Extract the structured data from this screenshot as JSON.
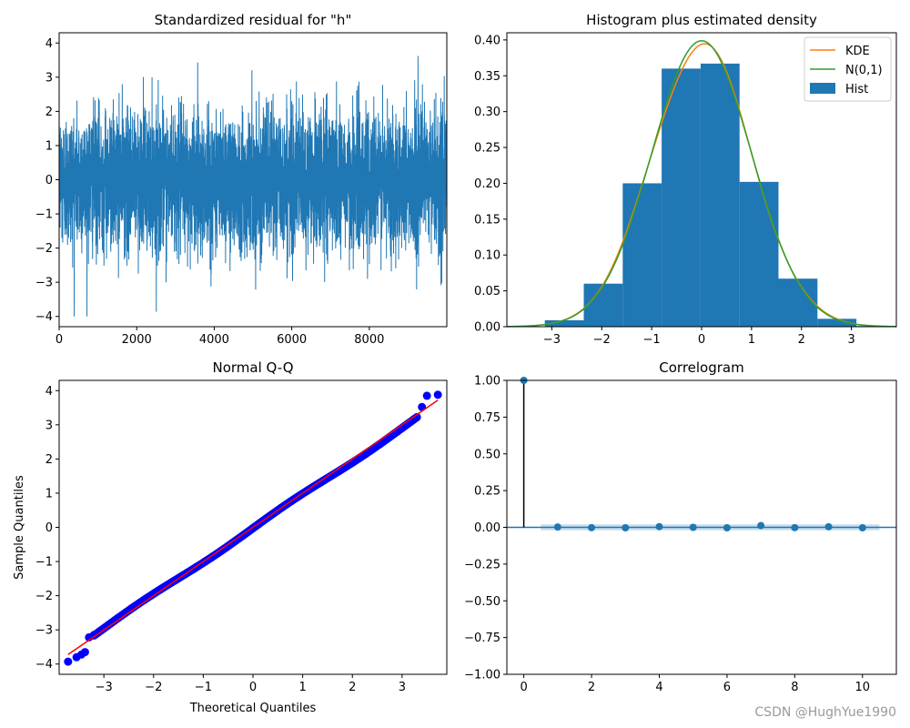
{
  "watermark": "CSDN @HughYue1990",
  "colors": {
    "series_blue": "#1f77b4",
    "kde_orange": "#ff7f0e",
    "norm_green": "#2ca02c",
    "qq_points": "#0000ff",
    "qq_line": "#ff0000",
    "stem": "#000000"
  },
  "chart_data": [
    {
      "type": "line",
      "title": "Standardized residual for \"h\"",
      "xlabel": "",
      "ylabel": "",
      "xlim": [
        0,
        9999
      ],
      "ylim": [
        -4.3,
        4.3
      ],
      "xticks": [
        0,
        2000,
        4000,
        6000,
        8000
      ],
      "yticks": [
        -4,
        -3,
        -2,
        -1,
        0,
        1,
        2,
        3,
        4
      ],
      "series": [
        {
          "n": 10000,
          "distribution": "standard normal noise",
          "min": -4.0,
          "max": 3.9
        }
      ]
    },
    {
      "type": "bar",
      "title": "Histogram plus estimated density",
      "xlim": [
        -3.9,
        3.9
      ],
      "ylim": [
        0,
        0.41
      ],
      "xticks": [
        -3,
        -2,
        -1,
        0,
        1,
        2,
        3
      ],
      "yticks": [
        0.0,
        0.05,
        0.1,
        0.15,
        0.2,
        0.25,
        0.3,
        0.35,
        0.4
      ],
      "bin_edges": [
        -3.92,
        -3.14,
        -2.36,
        -1.58,
        -0.8,
        -0.02,
        0.76,
        1.54,
        2.32,
        3.1,
        3.88
      ],
      "hist_values": [
        0.0,
        0.009,
        0.06,
        0.2,
        0.36,
        0.367,
        0.202,
        0.067,
        0.011,
        0.001
      ],
      "legend": {
        "position": "top-right",
        "entries": [
          "KDE",
          "N(0,1)",
          "Hist"
        ]
      },
      "kde_peak": 0.394
    },
    {
      "type": "scatter",
      "title": "Normal Q-Q",
      "xlabel": "Theoretical Quantiles",
      "ylabel": "Sample Quantiles",
      "xlim": [
        -3.9,
        3.9
      ],
      "ylim": [
        -4.3,
        4.3
      ],
      "xticks": [
        -3,
        -2,
        -1,
        0,
        1,
        2,
        3
      ],
      "yticks": [
        -4,
        -3,
        -2,
        -1,
        0,
        1,
        2,
        3,
        4
      ],
      "points": [
        [
          -3.72,
          -3.93
        ],
        [
          -3.55,
          -3.8
        ],
        [
          -3.45,
          -3.72
        ],
        [
          -3.38,
          -3.65
        ],
        [
          -3.3,
          -3.22
        ],
        [
          -3.2,
          -3.15
        ],
        [
          3.4,
          3.52
        ],
        [
          3.5,
          3.85
        ],
        [
          3.72,
          3.88
        ]
      ],
      "bulk": {
        "from": [
          -3.2,
          -3.15
        ],
        "to": [
          3.3,
          3.2
        ]
      },
      "reference_line": [
        [
          -3.72,
          -3.72
        ],
        [
          3.72,
          3.72
        ]
      ]
    },
    {
      "type": "scatter",
      "title": "Correlogram",
      "xlim": [
        -0.5,
        11
      ],
      "ylim": [
        -1.0,
        1.0
      ],
      "xticks": [
        0,
        2,
        4,
        6,
        8,
        10
      ],
      "yticks": [
        -1.0,
        -0.75,
        -0.5,
        -0.25,
        0.0,
        0.25,
        0.5,
        0.75,
        1.0
      ],
      "lags": [
        0,
        1,
        2,
        3,
        4,
        5,
        6,
        7,
        8,
        9,
        10
      ],
      "acf": [
        1.0,
        0.002,
        -0.002,
        -0.003,
        0.005,
        0.0,
        -0.003,
        0.012,
        -0.002,
        0.004,
        -0.003
      ],
      "confidence_band": 0.02
    }
  ]
}
